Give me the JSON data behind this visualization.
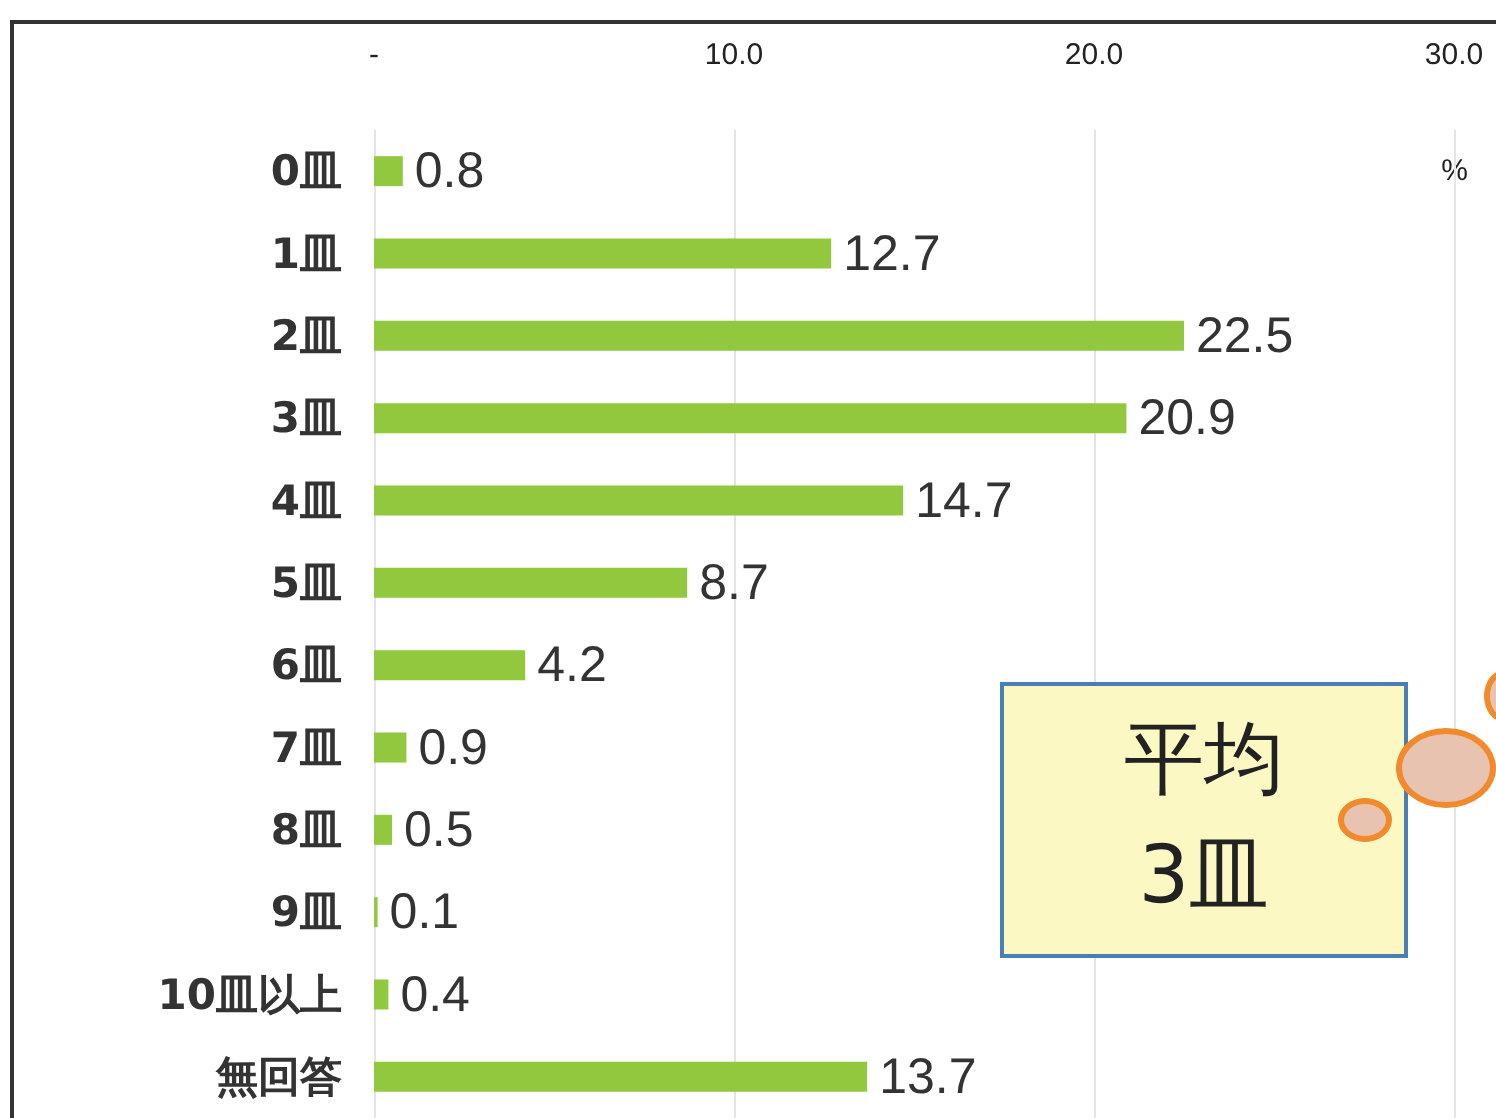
{
  "chart_data": {
    "type": "bar",
    "orientation": "horizontal",
    "xlabel": "%",
    "categories": [
      "0皿",
      "1皿",
      "2皿",
      "3皿",
      "4皿",
      "5皿",
      "6皿",
      "7皿",
      "8皿",
      "9皿",
      "10皿以上",
      "無回答"
    ],
    "values": [
      0.8,
      12.7,
      22.5,
      20.9,
      14.7,
      8.7,
      4.2,
      0.9,
      0.5,
      0.1,
      0.4,
      13.7
    ],
    "color": "#92c83e",
    "xlim": [
      0,
      30
    ],
    "xticks": [
      {
        "value": 0,
        "label": "-"
      },
      {
        "value": 10,
        "label": "10.0"
      },
      {
        "value": 20,
        "label": "20.0"
      },
      {
        "value": 30,
        "label": "30.0"
      }
    ],
    "grid": "x",
    "data_labels": true,
    "annotations": [
      "平均\n3皿"
    ]
  }
}
